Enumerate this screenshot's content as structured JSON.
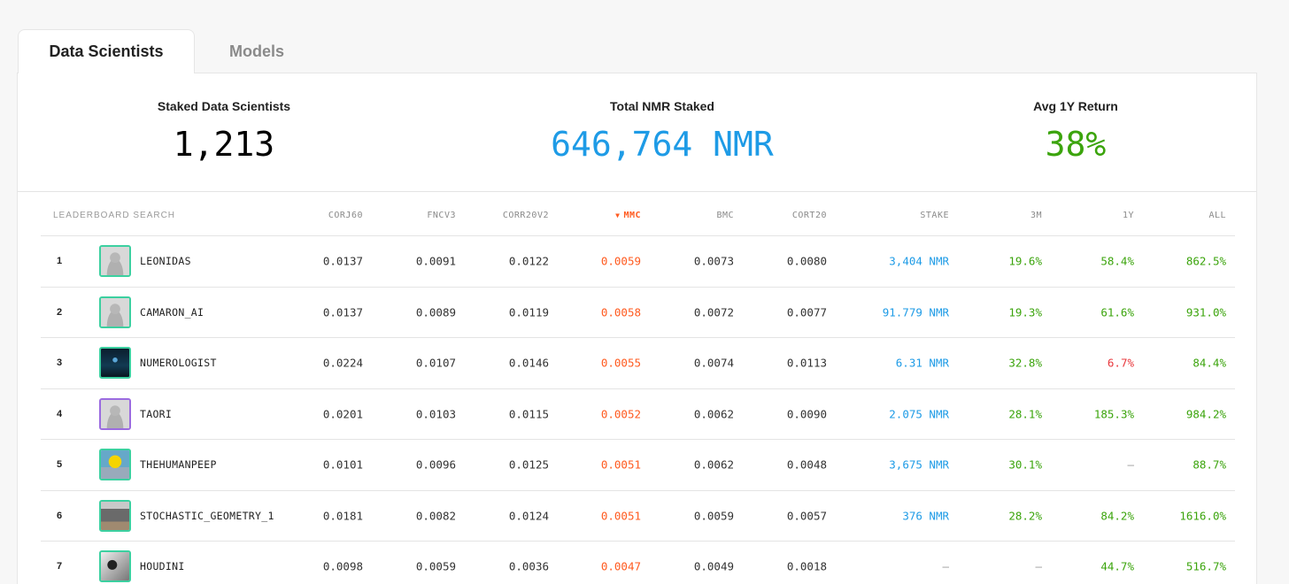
{
  "tabs": [
    {
      "label": "Data Scientists",
      "active": true
    },
    {
      "label": "Models",
      "active": false
    }
  ],
  "stats": {
    "staked_scientists": {
      "label": "Staked Data Scientists",
      "value": "1,213",
      "color": "#000000"
    },
    "total_nmr": {
      "label": "Total NMR Staked",
      "value": "646,764 NMR",
      "color": "#1e9be6"
    },
    "avg_return": {
      "label": "Avg 1Y Return",
      "value": "38%",
      "color": "#3ba40c"
    }
  },
  "table": {
    "search_placeholder": "LEADERBOARD SEARCH",
    "sort_arrow": "▼",
    "columns": {
      "corj60": "CORJ60",
      "fncv3": "FNCV3",
      "corr20v2": "CORR20V2",
      "mmc": "MMC",
      "bmc": "BMC",
      "cort20": "CORT20",
      "stake": "STAKE",
      "m3": "3M",
      "y1": "1Y",
      "all": "ALL"
    },
    "rows": [
      {
        "rank": "1",
        "name": "LEONIDAS",
        "avatar": "blurred-person-avatar",
        "corj60": "0.0137",
        "fncv3": "0.0091",
        "corr20v2": "0.0122",
        "mmc": "0.0059",
        "bmc": "0.0073",
        "cort20": "0.0080",
        "stake": "3,404 NMR",
        "m3": "19.6%",
        "y1": "58.4%",
        "all": "862.5%"
      },
      {
        "rank": "2",
        "name": "CAMARON_AI",
        "avatar": "blurred-person-avatar",
        "corj60": "0.0137",
        "fncv3": "0.0089",
        "corr20v2": "0.0119",
        "mmc": "0.0058",
        "bmc": "0.0072",
        "cort20": "0.0077",
        "stake": "91.779 NMR",
        "m3": "19.3%",
        "y1": "61.6%",
        "all": "931.0%"
      },
      {
        "rank": "3",
        "name": "NUMEROLOGIST",
        "avatar": "dark-art-avatar",
        "corj60": "0.0224",
        "fncv3": "0.0107",
        "corr20v2": "0.0146",
        "mmc": "0.0055",
        "bmc": "0.0074",
        "cort20": "0.0113",
        "stake": "6.31 NMR",
        "m3": "32.8%",
        "y1": "6.7%",
        "all": "84.4%"
      },
      {
        "rank": "4",
        "name": "TAORI",
        "avatar": "blurred-person-avatar",
        "corj60": "0.0201",
        "fncv3": "0.0103",
        "corr20v2": "0.0115",
        "mmc": "0.0052",
        "bmc": "0.0062",
        "cort20": "0.0090",
        "stake": "2.075 NMR",
        "m3": "28.1%",
        "y1": "185.3%",
        "all": "984.2%"
      },
      {
        "rank": "5",
        "name": "THEHUMANPEEP",
        "avatar": "yellow-character-avatar",
        "corj60": "0.0101",
        "fncv3": "0.0096",
        "corr20v2": "0.0125",
        "mmc": "0.0051",
        "bmc": "0.0062",
        "cort20": "0.0048",
        "stake": "3,675 NMR",
        "m3": "30.1%",
        "y1": "–",
        "all": "88.7%"
      },
      {
        "rank": "6",
        "name": "STOCHASTIC_GEOMETRY_1",
        "avatar": "castle-avatar",
        "corj60": "0.0181",
        "fncv3": "0.0082",
        "corr20v2": "0.0124",
        "mmc": "0.0051",
        "bmc": "0.0059",
        "cort20": "0.0057",
        "stake": "376 NMR",
        "m3": "28.2%",
        "y1": "84.2%",
        "all": "1616.0%"
      },
      {
        "rank": "7",
        "name": "HOUDINI",
        "avatar": "bw-photo-avatar",
        "corj60": "0.0098",
        "fncv3": "0.0059",
        "corr20v2": "0.0036",
        "mmc": "0.0047",
        "bmc": "0.0049",
        "cort20": "0.0018",
        "stake": "–",
        "m3": "–",
        "y1": "44.7%",
        "all": "516.7%"
      }
    ]
  },
  "colors": {
    "accent_orange": "#ff5a1f",
    "stake_blue": "#1e9be6",
    "positive_green": "#3ba40c",
    "negative_red": "#e8383d",
    "avatar_border_green": "#3cd0a0",
    "avatar_border_purple": "#9b6be0"
  }
}
